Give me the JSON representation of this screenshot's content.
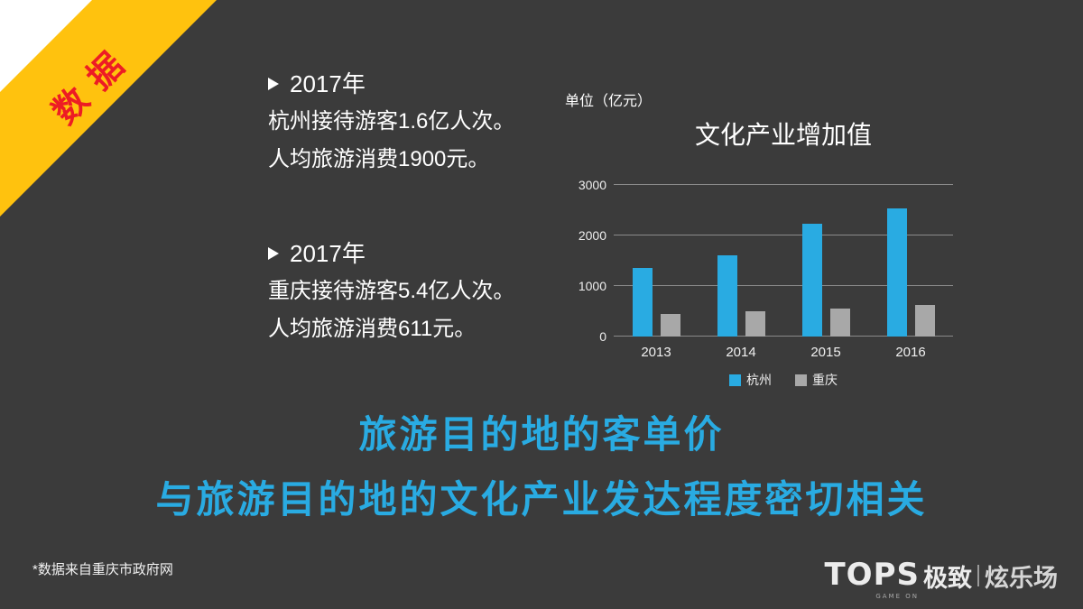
{
  "slide": {
    "background": "#3b3b3b",
    "accent_cyan": "#29abe2",
    "ribbon": {
      "label": "数据",
      "bg": "#ffc20e",
      "text_color": "#ed1c24"
    },
    "facts": [
      {
        "year": "2017年",
        "lines": [
          "杭州接待游客1.6亿人次。",
          "人均旅游消费1900元。"
        ]
      },
      {
        "year": "2017年",
        "lines": [
          "重庆接待游客5.4亿人次。",
          "人均旅游消费611元。"
        ]
      }
    ],
    "headline": [
      "旅游目的地的客单价",
      "与旅游目的地的文化产业发达程度密切相关"
    ],
    "footnote": "*数据来自重庆市政府网",
    "logo": {
      "tops": "TOPS",
      "tagline": "GAME ON",
      "brand1": "极致",
      "brand2": "炫乐场"
    }
  },
  "chart_data": {
    "type": "bar",
    "title": "文化产业增加值",
    "unit_label": "单位（亿元）",
    "categories": [
      "2013",
      "2014",
      "2015",
      "2016"
    ],
    "series": [
      {
        "name": "杭州",
        "color": "#29abe2",
        "values": [
          1360,
          1600,
          2230,
          2540
        ]
      },
      {
        "name": "重庆",
        "color": "#a8a8a8",
        "values": [
          440,
          500,
          550,
          620
        ]
      }
    ],
    "ylim": [
      0,
      3000
    ],
    "yticks": [
      0,
      1000,
      2000,
      3000
    ],
    "ylabel": "",
    "xlabel": "",
    "grid": true,
    "legend_position": "bottom"
  }
}
